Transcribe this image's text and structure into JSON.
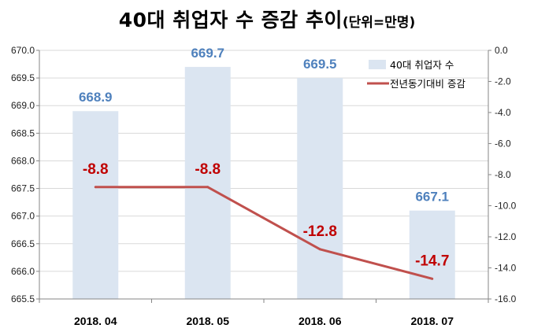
{
  "title": {
    "main": "40대 취업자 수 증감 추이",
    "unit": "(단위=만명)"
  },
  "colors": {
    "bar": "#dbe5f1",
    "line": "#c0504d",
    "bar_label": "#4f81bd",
    "line_label": "#c00000",
    "grid": "#d9d9d9"
  },
  "chart_data": {
    "type": "bar",
    "categories": [
      "2018. 04",
      "2018. 05",
      "2018. 06",
      "2018. 07"
    ],
    "series": [
      {
        "name": "40대 취업자 수",
        "type": "bar",
        "axis": "left",
        "values": [
          668.9,
          669.7,
          669.5,
          667.1
        ],
        "labels": [
          "668.9",
          "669.7",
          "669.5",
          "667.1"
        ]
      },
      {
        "name": "전년동기대비 증감",
        "type": "line",
        "axis": "right",
        "values": [
          -8.8,
          -8.8,
          -12.8,
          -14.7
        ],
        "labels": [
          "-8.8",
          "-8.8",
          "-12.8",
          "-14.7"
        ]
      }
    ],
    "left_axis": {
      "ylim": [
        665.5,
        670.0
      ],
      "ticks": [
        "670.0",
        "669.5",
        "669.0",
        "668.5",
        "668.0",
        "667.5",
        "667.0",
        "666.5",
        "666.0",
        "665.5"
      ]
    },
    "right_axis": {
      "ylim": [
        -16.0,
        0.0
      ],
      "ticks": [
        "0.0",
        "-2.0",
        "-4.0",
        "-6.0",
        "-8.0",
        "-10.0",
        "-12.0",
        "-14.0",
        "-16.0"
      ]
    },
    "grid": true,
    "legend_position": "top-right"
  }
}
